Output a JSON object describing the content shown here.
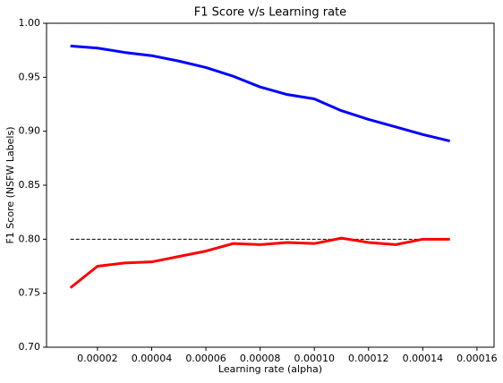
{
  "chart_data": {
    "type": "line",
    "title": "F1 Score v/s Learning rate",
    "xlabel": "Learning rate (alpha)",
    "ylabel": "F1 Score (NSFW Labels)",
    "x": [
      1e-05,
      2e-05,
      3e-05,
      4e-05,
      5e-05,
      6e-05,
      7e-05,
      8e-05,
      9e-05,
      0.0001,
      0.00011,
      0.00012,
      0.00013,
      0.00014,
      0.00015
    ],
    "series": [
      {
        "color": "#0000ff",
        "values": [
          0.979,
          0.977,
          0.973,
          0.97,
          0.965,
          0.959,
          0.951,
          0.941,
          0.934,
          0.93,
          0.919,
          0.911,
          0.904,
          0.897,
          0.891
        ]
      },
      {
        "color": "#ff0000",
        "values": [
          0.755,
          0.775,
          0.778,
          0.779,
          0.784,
          0.789,
          0.796,
          0.795,
          0.797,
          0.796,
          0.801,
          0.797,
          0.795,
          0.8,
          0.8
        ]
      }
    ],
    "hline": {
      "value": 0.8,
      "xrange": [
        1e-05,
        0.00015
      ],
      "color": "#000000",
      "dashed": true
    },
    "xlim": [
      1.2e-06,
      0.0001663
    ],
    "ylim": [
      0.7,
      1.0
    ],
    "xticks": [
      2e-05,
      4e-05,
      6e-05,
      8e-05,
      {
        "value": 0.0001,
        "label": "0.00010"
      },
      0.00012,
      0.00014,
      0.00016
    ],
    "yticks": [
      {
        "value": 0.7,
        "label": "0.70"
      },
      0.75,
      {
        "value": 0.8,
        "label": "0.80"
      },
      0.85,
      {
        "value": 0.9,
        "label": "0.90"
      },
      0.95,
      {
        "value": 1.0,
        "label": "1.00"
      }
    ]
  }
}
